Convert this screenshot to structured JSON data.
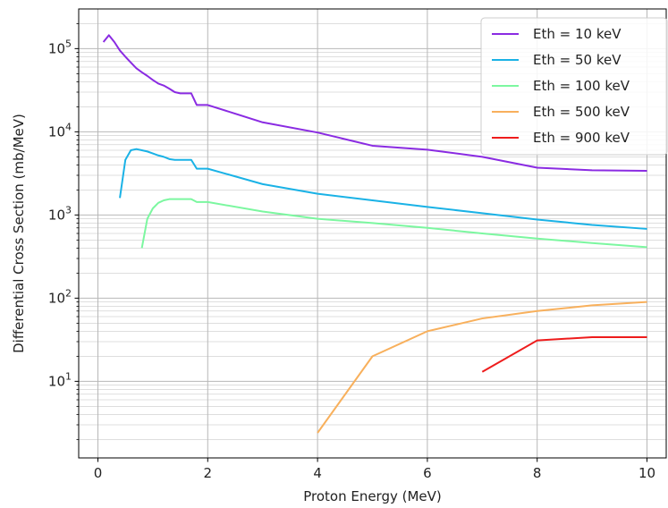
{
  "chart_data": {
    "type": "line",
    "xlabel": "Proton Energy (MeV)",
    "ylabel": "Differential Cross Section (mb/MeV)",
    "xlim": [
      -0.35,
      10.35
    ],
    "ylim": [
      1.2,
      300000
    ],
    "yscale": "log",
    "grid": true,
    "grid_minor": true,
    "legend_position": "top-right",
    "x_ticks": [
      0,
      2,
      4,
      6,
      8,
      10
    ],
    "x_tick_labels": [
      "0",
      "2",
      "4",
      "6",
      "8",
      "10"
    ],
    "y_ticks": [
      10,
      100,
      1000,
      10000,
      100000
    ],
    "y_tick_labels": [
      {
        "base": "10",
        "exp": "1"
      },
      {
        "base": "10",
        "exp": "2"
      },
      {
        "base": "10",
        "exp": "3"
      },
      {
        "base": "10",
        "exp": "4"
      },
      {
        "base": "10",
        "exp": "5"
      }
    ],
    "series": [
      {
        "name": "Eth = 10 keV",
        "color": "#8a2be2",
        "x": [
          0.1,
          0.2,
          0.3,
          0.4,
          0.5,
          0.6,
          0.7,
          0.8,
          0.9,
          1.0,
          1.1,
          1.2,
          1.3,
          1.4,
          1.5,
          1.6,
          1.7,
          1.8,
          1.9,
          2.0,
          3.0,
          4.0,
          5.0,
          6.0,
          7.0,
          8.0,
          9.0,
          10.0
        ],
        "y": [
          120000,
          145000,
          120000,
          95000,
          80000,
          68000,
          58000,
          52000,
          47000,
          42000,
          38000,
          36000,
          33000,
          30000,
          29000,
          29000,
          29000,
          21000,
          21000,
          21000,
          13000,
          9800,
          6800,
          6100,
          5000,
          3700,
          3450,
          3400
        ]
      },
      {
        "name": "Eth = 50 keV",
        "color": "#1ab2e6",
        "x": [
          0.4,
          0.5,
          0.6,
          0.7,
          0.8,
          0.9,
          1.0,
          1.1,
          1.2,
          1.3,
          1.4,
          1.5,
          1.6,
          1.7,
          1.8,
          1.9,
          2.0,
          3.0,
          4.0,
          5.0,
          6.0,
          7.0,
          8.0,
          9.0,
          10.0
        ],
        "y": [
          1600,
          4600,
          6000,
          6200,
          6000,
          5800,
          5500,
          5200,
          5000,
          4700,
          4600,
          4600,
          4600,
          4600,
          3600,
          3600,
          3600,
          2350,
          1800,
          1500,
          1250,
          1050,
          880,
          760,
          680
        ]
      },
      {
        "name": "Eth = 100 keV",
        "color": "#7cf7a0",
        "x": [
          0.8,
          0.9,
          1.0,
          1.1,
          1.2,
          1.3,
          1.4,
          1.5,
          1.6,
          1.7,
          1.8,
          1.9,
          2.0,
          3.0,
          4.0,
          5.0,
          6.0,
          7.0,
          8.0,
          9.0,
          10.0
        ],
        "y": [
          400,
          900,
          1200,
          1400,
          1500,
          1550,
          1550,
          1550,
          1550,
          1550,
          1430,
          1430,
          1430,
          1100,
          900,
          800,
          700,
          600,
          520,
          460,
          410
        ]
      },
      {
        "name": "Eth = 500 keV",
        "color": "#f8b05c",
        "x": [
          4.0,
          5.0,
          6.0,
          7.0,
          8.0,
          9.0,
          10.0
        ],
        "y": [
          2.4,
          20,
          40,
          57,
          70,
          82,
          90
        ]
      },
      {
        "name": "Eth = 900 keV",
        "color": "#ee1c1c",
        "x": [
          7.0,
          8.0,
          9.0,
          10.0
        ],
        "y": [
          13,
          31,
          34,
          34
        ]
      }
    ]
  }
}
